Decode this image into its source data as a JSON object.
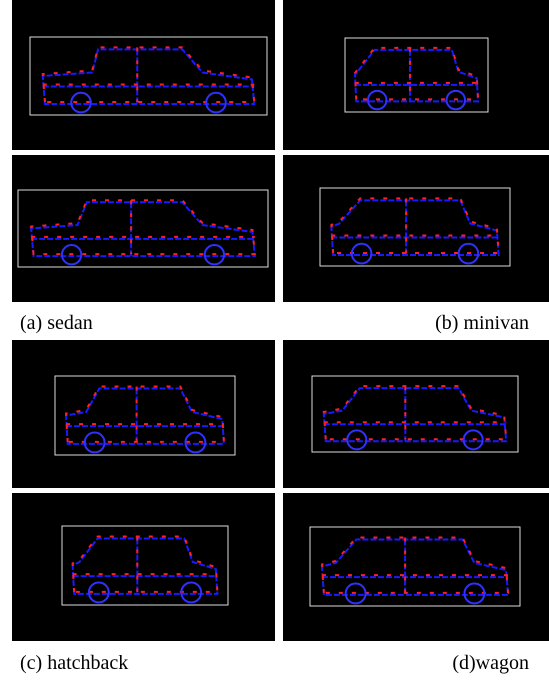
{
  "figure": {
    "captions": [
      "(a) sedan",
      "(b) minivan",
      "(c) hatchback",
      "(d)wagon"
    ]
  }
}
